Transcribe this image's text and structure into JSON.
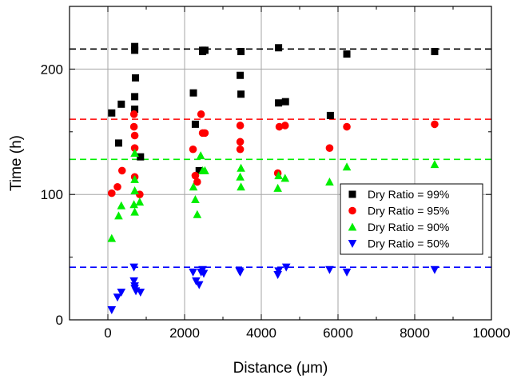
{
  "chart_data": {
    "type": "scatter",
    "title": "",
    "xlabel": "Distance (μm)",
    "ylabel": "Time (h)",
    "xlim": [
      -1000,
      10000
    ],
    "ylim": [
      0,
      250
    ],
    "xticks": [
      0,
      2000,
      4000,
      6000,
      8000,
      10000
    ],
    "yticks": [
      0,
      100,
      200
    ],
    "grid": true,
    "legend_position": "right",
    "series": [
      {
        "name": "Dry Ratio = 99%",
        "marker": "square",
        "color": "#000000",
        "points": [
          [
            100,
            165
          ],
          [
            280,
            141
          ],
          [
            350,
            172
          ],
          [
            700,
            218
          ],
          [
            700,
            215
          ],
          [
            700,
            178
          ],
          [
            700,
            168
          ],
          [
            720,
            193
          ],
          [
            850,
            130
          ],
          [
            2230,
            181
          ],
          [
            2280,
            156
          ],
          [
            2380,
            119
          ],
          [
            2470,
            215
          ],
          [
            2470,
            214
          ],
          [
            2530,
            215
          ],
          [
            3470,
            214
          ],
          [
            3450,
            195
          ],
          [
            3470,
            180
          ],
          [
            4450,
            173
          ],
          [
            4450,
            217
          ],
          [
            4630,
            174
          ],
          [
            5800,
            163
          ],
          [
            6230,
            212
          ],
          [
            8520,
            214
          ]
        ]
      },
      {
        "name": "Dry Ratio = 95%",
        "marker": "circle",
        "color": "#ff0000",
        "points": [
          [
            100,
            101
          ],
          [
            250,
            106
          ],
          [
            370,
            119
          ],
          [
            680,
            164
          ],
          [
            680,
            154
          ],
          [
            700,
            147
          ],
          [
            700,
            137
          ],
          [
            700,
            114
          ],
          [
            830,
            100
          ],
          [
            2220,
            136
          ],
          [
            2280,
            115
          ],
          [
            2330,
            110
          ],
          [
            2430,
            164
          ],
          [
            2470,
            149
          ],
          [
            2530,
            149
          ],
          [
            3450,
            155
          ],
          [
            3450,
            142
          ],
          [
            3450,
            136
          ],
          [
            4430,
            117
          ],
          [
            4470,
            154
          ],
          [
            4620,
            155
          ],
          [
            5780,
            137
          ],
          [
            6230,
            154
          ],
          [
            8520,
            156
          ]
        ]
      },
      {
        "name": "Dry Ratio = 90%",
        "marker": "triangle-up",
        "color": "#00ee00",
        "points": [
          [
            100,
            65
          ],
          [
            280,
            83
          ],
          [
            350,
            91
          ],
          [
            680,
            92
          ],
          [
            700,
            133
          ],
          [
            700,
            112
          ],
          [
            700,
            103
          ],
          [
            700,
            86
          ],
          [
            830,
            94
          ],
          [
            2230,
            106
          ],
          [
            2280,
            96
          ],
          [
            2330,
            84
          ],
          [
            2420,
            131
          ],
          [
            2470,
            119
          ],
          [
            2530,
            119
          ],
          [
            3450,
            114
          ],
          [
            3470,
            106
          ],
          [
            3470,
            121
          ],
          [
            4430,
            105
          ],
          [
            4450,
            115
          ],
          [
            4620,
            113
          ],
          [
            5780,
            110
          ],
          [
            6230,
            122
          ],
          [
            8520,
            124
          ]
        ]
      },
      {
        "name": "Dry Ratio = 50%",
        "marker": "triangle-down",
        "color": "#0000ff",
        "points": [
          [
            100,
            8
          ],
          [
            250,
            18
          ],
          [
            350,
            22
          ],
          [
            680,
            42
          ],
          [
            680,
            31
          ],
          [
            700,
            27
          ],
          [
            700,
            25
          ],
          [
            730,
            23
          ],
          [
            850,
            22
          ],
          [
            2220,
            38
          ],
          [
            2300,
            31
          ],
          [
            2380,
            28
          ],
          [
            2430,
            38
          ],
          [
            2470,
            40
          ],
          [
            2500,
            37
          ],
          [
            3430,
            39
          ],
          [
            3450,
            38
          ],
          [
            4430,
            36
          ],
          [
            4450,
            39
          ],
          [
            4650,
            42
          ],
          [
            5780,
            40
          ],
          [
            6230,
            38
          ],
          [
            8520,
            40
          ]
        ]
      }
    ],
    "reference_lines": [
      {
        "y": 216,
        "color": "#000000",
        "style": "dashed"
      },
      {
        "y": 160,
        "color": "#ff0000",
        "style": "dashed"
      },
      {
        "y": 128,
        "color": "#00ee00",
        "style": "dashed"
      },
      {
        "y": 42,
        "color": "#0000ff",
        "style": "dashed"
      }
    ]
  }
}
